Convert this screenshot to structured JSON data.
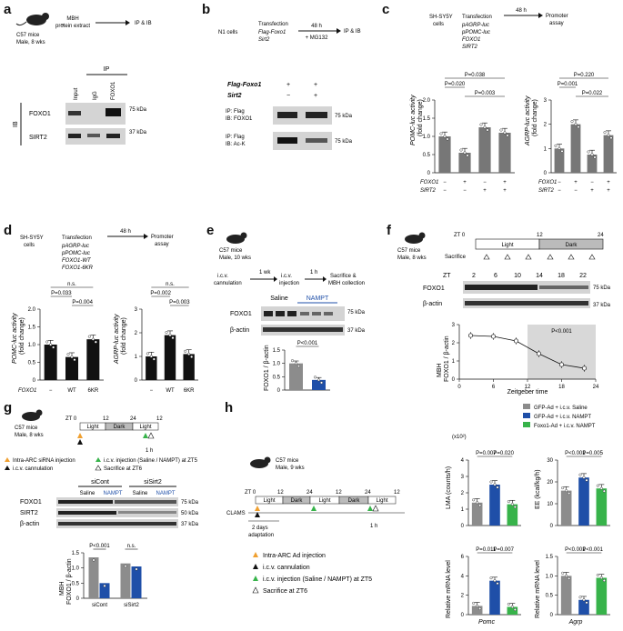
{
  "panels": {
    "a": {
      "label": "a",
      "mouse_text": [
        "C57 mice",
        "Male, 8 wks"
      ],
      "flow": [
        "MBH",
        "protein extract"
      ],
      "flow_end": "IP & IB",
      "ip_header": "IP",
      "lanes": [
        "Input",
        "IgG",
        "FOXO1"
      ],
      "ib_side": "IB",
      "rows": [
        "FOXO1",
        "SIRT2"
      ],
      "markers": [
        "75 kDa",
        "37 kDa"
      ]
    },
    "b": {
      "label": "b",
      "cells": "N1 cells",
      "transfection": "Transfection",
      "constructs": [
        "Flag-Foxo1",
        "Sirt2"
      ],
      "time": "48 h",
      "drug": "+ MG132",
      "end": "IP & IB",
      "row_labels": [
        "Flag-Foxo1",
        "Sirt2"
      ],
      "row1_signs": [
        "+",
        "+"
      ],
      "row2_signs": [
        "−",
        "+"
      ],
      "blot1": [
        "IP: Flag",
        "IB: FOXO1"
      ],
      "blot2": [
        "IP: Flag",
        "IB: Ac-K"
      ],
      "markers": [
        "75 kDa",
        "75 kDa"
      ]
    },
    "c": {
      "label": "c",
      "cells": [
        "SH-SY5Y",
        "cells"
      ],
      "transfection": "Transfection",
      "constructs": [
        "pAGRP-luc",
        "pPOMC-luc",
        "FOXO1",
        "SIRT2"
      ],
      "time": "48 h",
      "end": [
        "Promoter",
        "assay"
      ],
      "left_ylabel": [
        "POMC-luc activity",
        "(fold change)"
      ],
      "right_ylabel": [
        "AGRP-luc activity",
        "(fold change)"
      ],
      "left_p": [
        "P=0.038",
        "P=0.020",
        "P=0.003"
      ],
      "right_p": [
        "P=0.220",
        "P=0.001",
        "P=0.022"
      ],
      "row_names": [
        "FOXO1",
        "SIRT2"
      ],
      "foxo1_signs": [
        "−",
        "+",
        "−",
        "+"
      ],
      "sirt2_signs": [
        "−",
        "−",
        "+",
        "+"
      ],
      "yticks_left": [
        "0",
        "0.5",
        "1.0",
        "1.5",
        "2.0"
      ],
      "yticks_right": [
        "0",
        "1",
        "2",
        "3"
      ]
    },
    "d": {
      "label": "d",
      "cells": [
        "SH-SY5Y",
        "cells"
      ],
      "transfection": "Transfection",
      "constructs": [
        "pAGRP-luc",
        "pPOMC-luc",
        "FOXO1-WT",
        "FOXO1-6KR"
      ],
      "time": "48 h",
      "end": [
        "Promoter",
        "assay"
      ],
      "left_ylabel": [
        "POMC-luc activity",
        "(fold change)"
      ],
      "right_ylabel": [
        "AGRP-luc activity",
        "(fold change)"
      ],
      "left_p": [
        "n.s.",
        "P=0.033",
        "P=0.004"
      ],
      "right_p": [
        "n.s.",
        "P=0.002",
        "P=0.003"
      ],
      "xrow_name": "FOXO1",
      "xcats": [
        "−",
        "WT",
        "6KR"
      ],
      "yticks_left": [
        "0",
        "0.5",
        "1.0",
        "1.5",
        "2.0"
      ],
      "yticks_right": [
        "0",
        "1",
        "2",
        "3"
      ]
    },
    "e": {
      "label": "e",
      "mouse_text": [
        "C57 mice",
        "Male, 10 wks"
      ],
      "steps": [
        "i.c.v.",
        "cannulation",
        "i.c.v.",
        "injection",
        "Sacrifice &",
        "MBH collection"
      ],
      "gaps": [
        "1 wk",
        "1 h"
      ],
      "groups": [
        "Saline",
        "NAMPT"
      ],
      "rows": [
        "FOXO1",
        "β-actin"
      ],
      "markers": [
        "75 kDa",
        "37 kDa"
      ],
      "ylabel": "FOXO1 / β-actin",
      "p": "P<0.001",
      "yticks": [
        "0",
        "0.5",
        "1.0",
        "1.5"
      ]
    },
    "f": {
      "label": "f",
      "mouse_text": [
        "C57 mice",
        "Male, 8 wks"
      ],
      "zt": [
        "ZT 0",
        "12",
        "24"
      ],
      "light": "Light",
      "dark": "Dark",
      "sacrifice": "Sacrifice",
      "zt_row_label": "ZT",
      "lanes": [
        "2",
        "6",
        "10",
        "14",
        "18",
        "22"
      ],
      "rows": [
        "FOXO1",
        "β-actin"
      ],
      "markers": [
        "75 kDa",
        "37 kDa"
      ],
      "ylabel": [
        "MBH",
        "FOXO1 / β-actin"
      ],
      "xlabel": "Zeitgeber time",
      "p": "P<0.001",
      "xticks": [
        "0",
        "6",
        "12",
        "18",
        "24"
      ],
      "yticks": [
        "0",
        "1",
        "2",
        "3"
      ]
    },
    "g": {
      "label": "g",
      "mouse_text": [
        "C57 mice",
        "Male, 8 wks"
      ],
      "timeline": [
        "ZT 0",
        "12",
        "24",
        "12"
      ],
      "blocks": [
        "Light",
        "Dark",
        "Light"
      ],
      "gap": "1 h",
      "legend": [
        "Intra-ARC siRNA injection",
        "i.c.v. cannulation",
        "i.c.v. injection (Saline / NAMPT) at ZT5",
        "Sacrifice at ZT6"
      ],
      "sirna": [
        "siCont",
        "siSirt2"
      ],
      "groups": [
        "Saline",
        "NAMPT",
        "Saline",
        "NAMPT"
      ],
      "rows": [
        "FOXO1",
        "SIRT2",
        "β-actin"
      ],
      "markers": [
        "75 kDa",
        "50 kDa",
        "37 kDa"
      ],
      "ylabel": [
        "MBH",
        "FOXO1 / β-actin"
      ],
      "p": [
        "P<0.001",
        "n.s."
      ],
      "xcats": [
        "siCont",
        "siSirt2"
      ],
      "yticks": [
        "0",
        "0.5",
        "1.0",
        "1.5"
      ]
    },
    "h": {
      "label": "h",
      "mouse_text": [
        "C57 mice",
        "Male, 9 wks"
      ],
      "timeline": [
        "ZT 0",
        "12",
        "24",
        "12",
        "24",
        "12"
      ],
      "blocks": [
        "Light",
        "Dark",
        "Light",
        "Dark",
        "Light"
      ],
      "clams": "CLAMS",
      "adaptation": [
        "2 days",
        "adaptation"
      ],
      "gap": "1 h",
      "legend": [
        "Intra-ARC Ad injection",
        "i.c.v. cannulation",
        "i.c.v. injection (Saline / NAMPT) at ZT5",
        "Sacrifice at ZT6"
      ],
      "series_legend": [
        "GFP-Ad + i.c.v. Saline",
        "GFP-Ad + i.c.v. NAMPT",
        "Foxo1-Ad + i.c.v. NAMPT"
      ],
      "lma": {
        "ylabel": "LMA (counts/h)",
        "scale": "(x10²)",
        "p": [
          "P=0.007",
          "P=0.020"
        ],
        "yticks": [
          "0",
          "1",
          "2",
          "3",
          "4"
        ]
      },
      "ee": {
        "ylabel": "EE (kcal/kg/h)",
        "p": [
          "P<0.001",
          "P=0.005"
        ],
        "yticks": [
          "0",
          "10",
          "20",
          "30"
        ]
      },
      "pomc": {
        "ylabel": "Relative mRNA level",
        "p": [
          "P=0.011",
          "P=0.007"
        ],
        "xlabel": "Pomc",
        "yticks": [
          "0",
          "2",
          "4",
          "6"
        ]
      },
      "agrp": {
        "ylabel": "Relative mRNA level",
        "p": [
          "P<0.001",
          "P<0.001"
        ],
        "xlabel": "Agrp",
        "yticks": [
          "0",
          "0.5",
          "1.0",
          "1.5"
        ]
      }
    }
  },
  "chart_data": [
    {
      "id": "c-left",
      "type": "bar",
      "categories": [
        "−/−",
        "+/−",
        "−/+",
        "+/+"
      ],
      "values": [
        1.0,
        0.55,
        1.25,
        1.1
      ],
      "ylim": [
        0,
        2.0
      ],
      "colors": [
        "#777777",
        "#777777",
        "#777777",
        "#777777"
      ]
    },
    {
      "id": "c-right",
      "type": "bar",
      "categories": [
        "−/−",
        "+/−",
        "−/+",
        "+/+"
      ],
      "values": [
        1.0,
        2.0,
        0.75,
        1.55
      ],
      "ylim": [
        0,
        3.0
      ]
    },
    {
      "id": "d-left",
      "type": "bar",
      "categories": [
        "−",
        "WT",
        "6KR"
      ],
      "values": [
        1.0,
        0.65,
        1.15
      ],
      "ylim": [
        0,
        2.0
      ]
    },
    {
      "id": "d-right",
      "type": "bar",
      "categories": [
        "−",
        "WT",
        "6KR"
      ],
      "values": [
        1.0,
        1.9,
        1.1
      ],
      "ylim": [
        0,
        3.0
      ]
    },
    {
      "id": "e",
      "type": "bar",
      "categories": [
        "Saline",
        "NAMPT"
      ],
      "values": [
        1.0,
        0.38
      ],
      "ylim": [
        0,
        1.5
      ]
    },
    {
      "id": "f",
      "type": "line",
      "x": [
        2,
        6,
        10,
        14,
        18,
        22
      ],
      "y": [
        2.4,
        2.35,
        2.1,
        1.4,
        0.8,
        0.6
      ],
      "ylim": [
        0,
        3
      ],
      "xlim": [
        0,
        24
      ]
    },
    {
      "id": "g",
      "type": "bar",
      "categories": [
        "siCont",
        "siSirt2"
      ],
      "series": [
        {
          "name": "Saline",
          "values": [
            1.35,
            1.15
          ]
        },
        {
          "name": "NAMPT",
          "values": [
            0.5,
            1.05
          ]
        }
      ],
      "ylim": [
        0,
        1.5
      ]
    },
    {
      "id": "h-lma",
      "type": "bar",
      "categories": [
        "GFP-Ad + i.c.v. Saline",
        "GFP-Ad + i.c.v. NAMPT",
        "Foxo1-Ad + i.c.v. NAMPT"
      ],
      "values": [
        1.4,
        2.5,
        1.3
      ],
      "ylim": [
        0,
        4
      ]
    },
    {
      "id": "h-ee",
      "type": "bar",
      "categories": [
        "GFP-Ad + i.c.v. Saline",
        "GFP-Ad + i.c.v. NAMPT",
        "Foxo1-Ad + i.c.v. NAMPT"
      ],
      "values": [
        16,
        22,
        17
      ],
      "ylim": [
        0,
        30
      ]
    },
    {
      "id": "h-pomc",
      "type": "bar",
      "categories": [
        "GFP-Ad + i.c.v. Saline",
        "GFP-Ad + i.c.v. NAMPT",
        "Foxo1-Ad + i.c.v. NAMPT"
      ],
      "values": [
        0.9,
        3.5,
        0.8
      ],
      "ylim": [
        0,
        6
      ]
    },
    {
      "id": "h-agrp",
      "type": "bar",
      "categories": [
        "GFP-Ad + i.c.v. Saline",
        "GFP-Ad + i.c.v. NAMPT",
        "Foxo1-Ad + i.c.v. NAMPT"
      ],
      "values": [
        1.0,
        0.38,
        0.95
      ],
      "ylim": [
        0,
        1.5
      ]
    }
  ],
  "colors": {
    "gray": "#8c8c8c",
    "blue": "#1f4fa8",
    "green": "#37b34a",
    "black": "#111111",
    "orange": "#f0a030"
  }
}
